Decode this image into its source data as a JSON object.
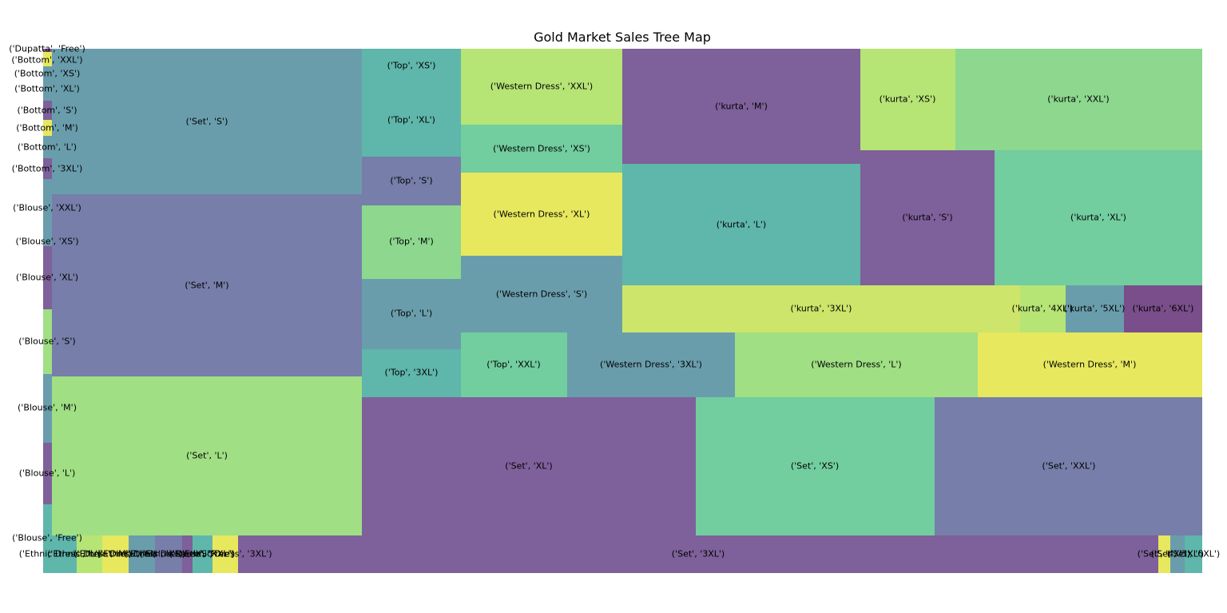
{
  "chart_data": {
    "type": "treemap",
    "title": "Gold Market Sales Tree Map",
    "colors": {
      "purple": "#7e609a",
      "slate": "#767ea9",
      "steel": "#6a9dac",
      "teal": "#5fb6ab",
      "mint": "#72cd9f",
      "lightgreen": "#8dd78f",
      "green": "#a0df84",
      "limegreen": "#b6e475",
      "lime": "#cde56a",
      "yellow": "#e7e85e",
      "plum": "#7a4e8a"
    },
    "tiles": [
      {
        "label": "('Dupatta', 'Free')",
        "color": "purple",
        "value": 0.3
      },
      {
        "label": "('Bottom', 'XXL')",
        "color": "yellow",
        "value": 3
      },
      {
        "label": "('Bottom', 'XS')",
        "color": "steel",
        "value": 3
      },
      {
        "label": "('Bottom', 'XL')",
        "color": "steel",
        "value": 4
      },
      {
        "label": "('Bottom', 'S')",
        "color": "purple",
        "value": 4
      },
      {
        "label": "('Bottom', 'M')",
        "color": "yellow",
        "value": 4
      },
      {
        "label": "('Bottom', 'L')",
        "color": "steel",
        "value": 5
      },
      {
        "label": "('Bottom', '3XL')",
        "color": "purple",
        "value": 4
      },
      {
        "label": "('Blouse', 'XXL')",
        "color": "steel",
        "value": 15
      },
      {
        "label": "('Blouse', 'XS')",
        "color": "steel",
        "value": 8
      },
      {
        "label": "('Blouse', 'XL')",
        "color": "purple",
        "value": 15
      },
      {
        "label": "('Blouse', 'S')",
        "color": "green",
        "value": 16
      },
      {
        "label": "('Blouse', 'M')",
        "color": "steel",
        "value": 16
      },
      {
        "label": "('Blouse', 'L')",
        "color": "purple",
        "value": 15
      },
      {
        "label": "('Blouse', 'Free')",
        "color": "teal",
        "value": 8
      },
      {
        "label": "('Set', 'S')",
        "color": "steel",
        "value": 710
      },
      {
        "label": "('Set', 'M')",
        "color": "slate",
        "value": 880
      },
      {
        "label": "('Set', 'L')",
        "color": "green",
        "value": 770
      },
      {
        "label": "('Top', 'XS')",
        "color": "teal",
        "value": 42
      },
      {
        "label": "('Top', 'XL')",
        "color": "teal",
        "value": 92
      },
      {
        "label": "('Top', 'S')",
        "color": "slate",
        "value": 75
      },
      {
        "label": "('Top', 'M')",
        "color": "lightgreen",
        "value": 114
      },
      {
        "label": "('Top', 'L')",
        "color": "steel",
        "value": 109
      },
      {
        "label": "('Top', '3XL')",
        "color": "teal",
        "value": 74
      },
      {
        "label": "('Western Dress', 'XXL')",
        "color": "limegreen",
        "value": 192
      },
      {
        "label": "('Western Dress', 'XS')",
        "color": "mint",
        "value": 121
      },
      {
        "label": "('Western Dress', 'XL')",
        "color": "yellow",
        "value": 210
      },
      {
        "label": "('Western Dress', 'S')",
        "color": "steel",
        "value": 194
      },
      {
        "label": "('kurta', 'M')",
        "color": "purple",
        "value": 430
      },
      {
        "label": "('kurta', 'XS')",
        "color": "limegreen",
        "value": 151
      },
      {
        "label": "('kurta', 'XXL')",
        "color": "lightgreen",
        "value": 392
      },
      {
        "label": "('kurta', 'L')",
        "color": "teal",
        "value": 450
      },
      {
        "label": "('kurta', 'S')",
        "color": "purple",
        "value": 255
      },
      {
        "label": "('kurta', 'XL')",
        "color": "mint",
        "value": 462
      },
      {
        "label": "('kurta', '3XL')",
        "color": "lime",
        "value": 294
      },
      {
        "label": "('kurta', '4XL')",
        "color": "limegreen",
        "value": 33
      },
      {
        "label": "('kurta', '5XL')",
        "color": "steel",
        "value": 43
      },
      {
        "label": "('kurta', '6XL')",
        "color": "plum",
        "value": 58
      },
      {
        "label": "('Top', 'XXL')",
        "color": "mint",
        "value": 106
      },
      {
        "label": "('Western Dress', '3XL')",
        "color": "steel",
        "value": 168
      },
      {
        "label": "('Western Dress', 'L')",
        "color": "green",
        "value": 244
      },
      {
        "label": "('Western Dress', 'M')",
        "color": "yellow",
        "value": 225
      },
      {
        "label": "('Set', 'XL')",
        "color": "purple",
        "value": 720
      },
      {
        "label": "('Set', 'XS')",
        "color": "mint",
        "value": 515
      },
      {
        "label": "('Set', 'XXL')",
        "color": "slate",
        "value": 578
      },
      {
        "label": "('Ethnic Dress', 'L')",
        "color": "teal",
        "value": 19
      },
      {
        "label": "('Ethnic Dress', 'M')",
        "color": "limegreen",
        "value": 15
      },
      {
        "label": "('Ethnic Dress', 'S')",
        "color": "yellow",
        "value": 15
      },
      {
        "label": "('Ethnic Dress', 'XL')",
        "color": "steel",
        "value": 15
      },
      {
        "label": "('Ethnic Dress', 'XS')",
        "color": "slate",
        "value": 15
      },
      {
        "label": "('Ethnic Dress', 'XXL')",
        "color": "purple",
        "value": 6
      },
      {
        "label": "('Saree', 'Free')",
        "color": "teal",
        "value": 11
      },
      {
        "label": "('Ethnic Dress', '3XL')",
        "color": "yellow",
        "value": 15
      },
      {
        "label": "('Set', '3XL')",
        "color": "purple",
        "value": 526
      },
      {
        "label": "('Set', '4XL')",
        "color": "yellow",
        "value": 7
      },
      {
        "label": "('Set', '5XL')",
        "color": "steel",
        "value": 8
      },
      {
        "label": "('Set', '6XL')",
        "color": "teal",
        "value": 10
      }
    ]
  }
}
